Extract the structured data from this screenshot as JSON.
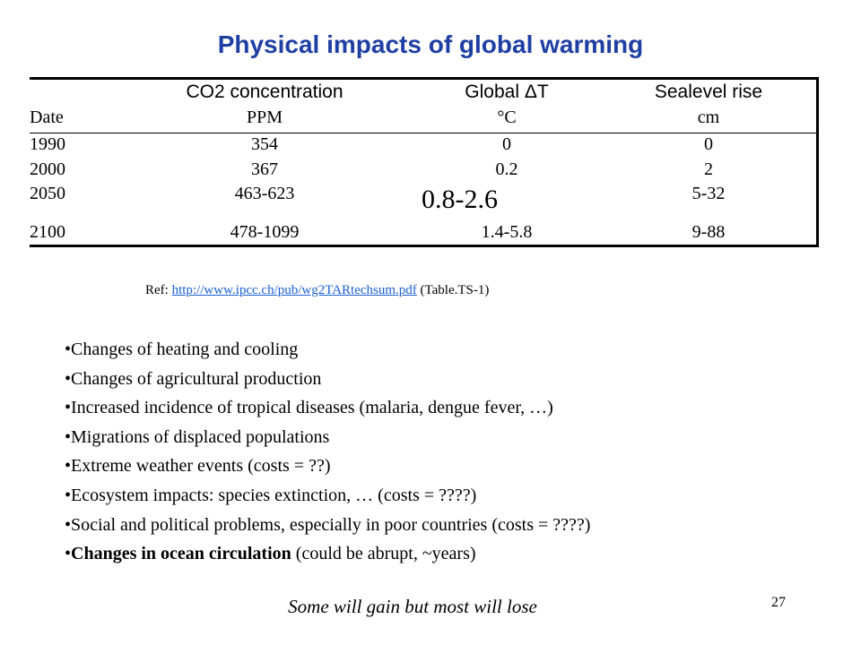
{
  "slide": {
    "title": "Physical impacts of global warming",
    "page_number": "27",
    "tagline": "Some will gain but most will lose"
  },
  "table": {
    "headers": {
      "co2": "CO2 concentration",
      "temp": "Global ΔT",
      "sea": "Sealevel rise"
    },
    "units": {
      "date": "Date",
      "co2": "PPM",
      "temp": "°C",
      "sea": "cm"
    },
    "rows": [
      {
        "date": "1990",
        "co2": "354",
        "temp": "0",
        "sea": "0"
      },
      {
        "date": "2000",
        "co2": "367",
        "temp": "0.2",
        "sea": "2"
      },
      {
        "date": "2050",
        "co2": "463-623",
        "temp": "0.8-2.6",
        "sea": "5-32"
      },
      {
        "date": "2100",
        "co2": "478-1099",
        "temp": "1.4-5.8",
        "sea": "9-88"
      }
    ]
  },
  "reference": {
    "prefix": "Ref: ",
    "link_text": "http://www.ipcc.ch/pub/wg2TARtechsum.pdf",
    "suffix": " (Table.TS-1)",
    "link_color": "#1a5fd6"
  },
  "bullets": [
    {
      "text": "Changes of heating and cooling"
    },
    {
      "text": "Changes of agricultural production"
    },
    {
      "text": "Increased incidence of tropical diseases (malaria, dengue fever, …)"
    },
    {
      "text": "Migrations of displaced populations"
    },
    {
      "text": "Extreme weather events (costs = ??)"
    },
    {
      "text": "Ecosystem impacts: species extinction, … (costs = ????)"
    },
    {
      "text": "Social and political problems, especially in poor countries (costs = ????)"
    },
    {
      "bold": "Changes in ocean circulation",
      "text": " (could be abrupt, ~years)"
    }
  ],
  "colors": {
    "title": "#1f3fa3",
    "text": "#000000",
    "background": "#ffffff"
  }
}
